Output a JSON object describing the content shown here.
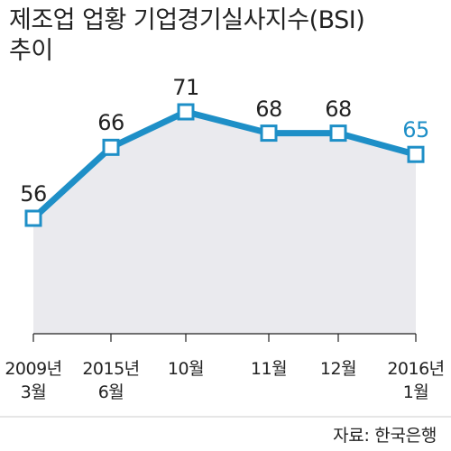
{
  "title_lines": [
    "제조업 업황 기업경기실사지수(BSI)",
    "추이"
  ],
  "source": "자료: 한국은행",
  "colors": {
    "line": "#1e8fc7",
    "highlight": "#1e8fc7",
    "area": "#eaeaee",
    "text": "#222222",
    "divider": "#cccccc"
  },
  "chart_data": {
    "type": "line",
    "categories": [
      [
        "2009년",
        "3월"
      ],
      [
        "2015년",
        "6월"
      ],
      [
        "10월"
      ],
      [
        "11월"
      ],
      [
        "12월"
      ],
      [
        "2016년",
        "1월"
      ]
    ],
    "values": [
      56,
      66,
      71,
      68,
      68,
      65
    ],
    "data_labels": [
      "56",
      "66",
      "71",
      "68",
      "68",
      "65"
    ],
    "highlight_index": 5,
    "ylim": [
      40,
      75
    ],
    "grid": false,
    "area_fill": true,
    "marker": "hollow-square"
  }
}
